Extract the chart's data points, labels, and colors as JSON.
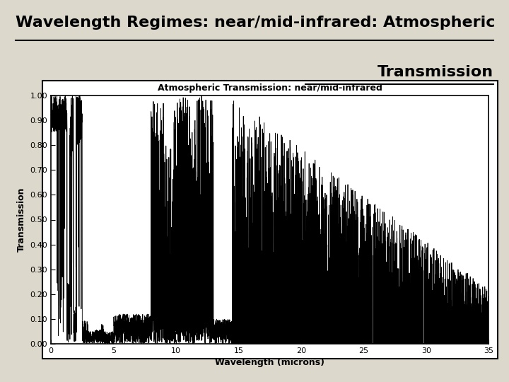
{
  "plot_title": "Atmospheric Transmission: near/mid-infrared",
  "page_title_line1": "Wavelength Regimes: near/mid-infrared: Atmospheric",
  "page_title_line2": "Transmission",
  "xlabel": "Wavelength (microns)",
  "ylabel": "Transmission",
  "xlim": [
    0,
    35
  ],
  "ylim": [
    0,
    1.0
  ],
  "xticks": [
    0,
    5,
    10,
    15,
    20,
    25,
    30,
    35
  ],
  "yticks": [
    0.0,
    0.1,
    0.2,
    0.3,
    0.4,
    0.5,
    0.6,
    0.7,
    0.8,
    0.9,
    1.0
  ],
  "bg_color": "#ddd8cc",
  "plot_bg_color": "#ffffff",
  "line_color": "#000000",
  "title_color": "#000000",
  "seed": 42
}
